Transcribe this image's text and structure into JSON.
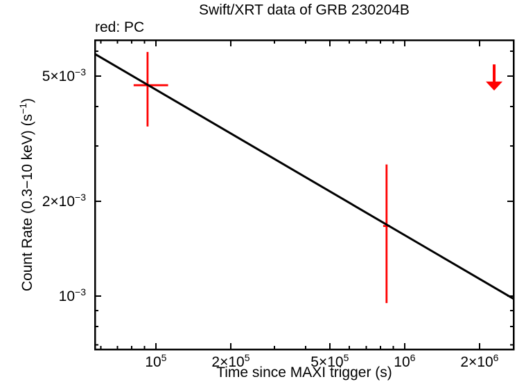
{
  "chart_data": {
    "type": "scatter",
    "title": "Swift/XRT data of GRB 230204B",
    "legend": "red: PC",
    "xlabel": "Time since MAXI trigger (s)",
    "ylabel": "Count Rate (0.3−10 keV) (s^{−1})",
    "xscale": "log",
    "yscale": "log",
    "xlim": [
      56900,
      2740000
    ],
    "ylim": [
      0.000677,
      0.00651
    ],
    "grid": false,
    "legend_position": "top-left",
    "colors": {
      "pc_data": "#ff0000",
      "model": "#000000",
      "axes": "#000000",
      "background": "#ffffff"
    },
    "x_ticks": {
      "major": [
        {
          "value": 100000,
          "label": "10^{5}"
        },
        {
          "value": 200000,
          "label": "2×10^{5}"
        },
        {
          "value": 500000,
          "label": "5×10^{5}"
        },
        {
          "value": 1000000,
          "label": "10^{6}"
        },
        {
          "value": 2000000,
          "label": "2×10^{6}"
        }
      ],
      "minor": [
        60000,
        70000,
        80000,
        90000,
        300000,
        400000,
        600000,
        700000,
        800000,
        900000
      ]
    },
    "y_ticks": {
      "major": [
        {
          "value": 0.005,
          "label": "5×10^{−3}"
        },
        {
          "value": 0.002,
          "label": "2×10^{−3}"
        },
        {
          "value": 0.001,
          "label": "10^{−3}"
        }
      ],
      "minor": [
        0.006,
        0.004,
        0.003,
        0.0009,
        0.0008,
        0.0007
      ]
    },
    "series": [
      {
        "name": "XRT PC-mode data",
        "type": "points_with_errors",
        "color": "#ff0000",
        "points": [
          {
            "t": 92600,
            "t_lo": 81400,
            "t_hi": 112000,
            "rate": 0.00468,
            "rate_lo": 0.00346,
            "rate_hi": 0.00597
          },
          {
            "t": 846000,
            "t_lo": 820000,
            "t_hi": 873000,
            "rate": 0.00167,
            "rate_lo": 0.00095,
            "rate_hi": 0.00262
          }
        ]
      },
      {
        "name": "upper limit",
        "type": "upper_limit",
        "color": "#ff0000",
        "points": [
          {
            "t": 2290000,
            "rate": 0.00545,
            "arrow_to": 0.0045
          }
        ]
      },
      {
        "name": "power-law model",
        "type": "line",
        "color": "#000000",
        "points": [
          {
            "t": 56900,
            "rate": 0.00588
          },
          {
            "t": 2740000,
            "rate": 0.00098
          }
        ]
      }
    ]
  }
}
